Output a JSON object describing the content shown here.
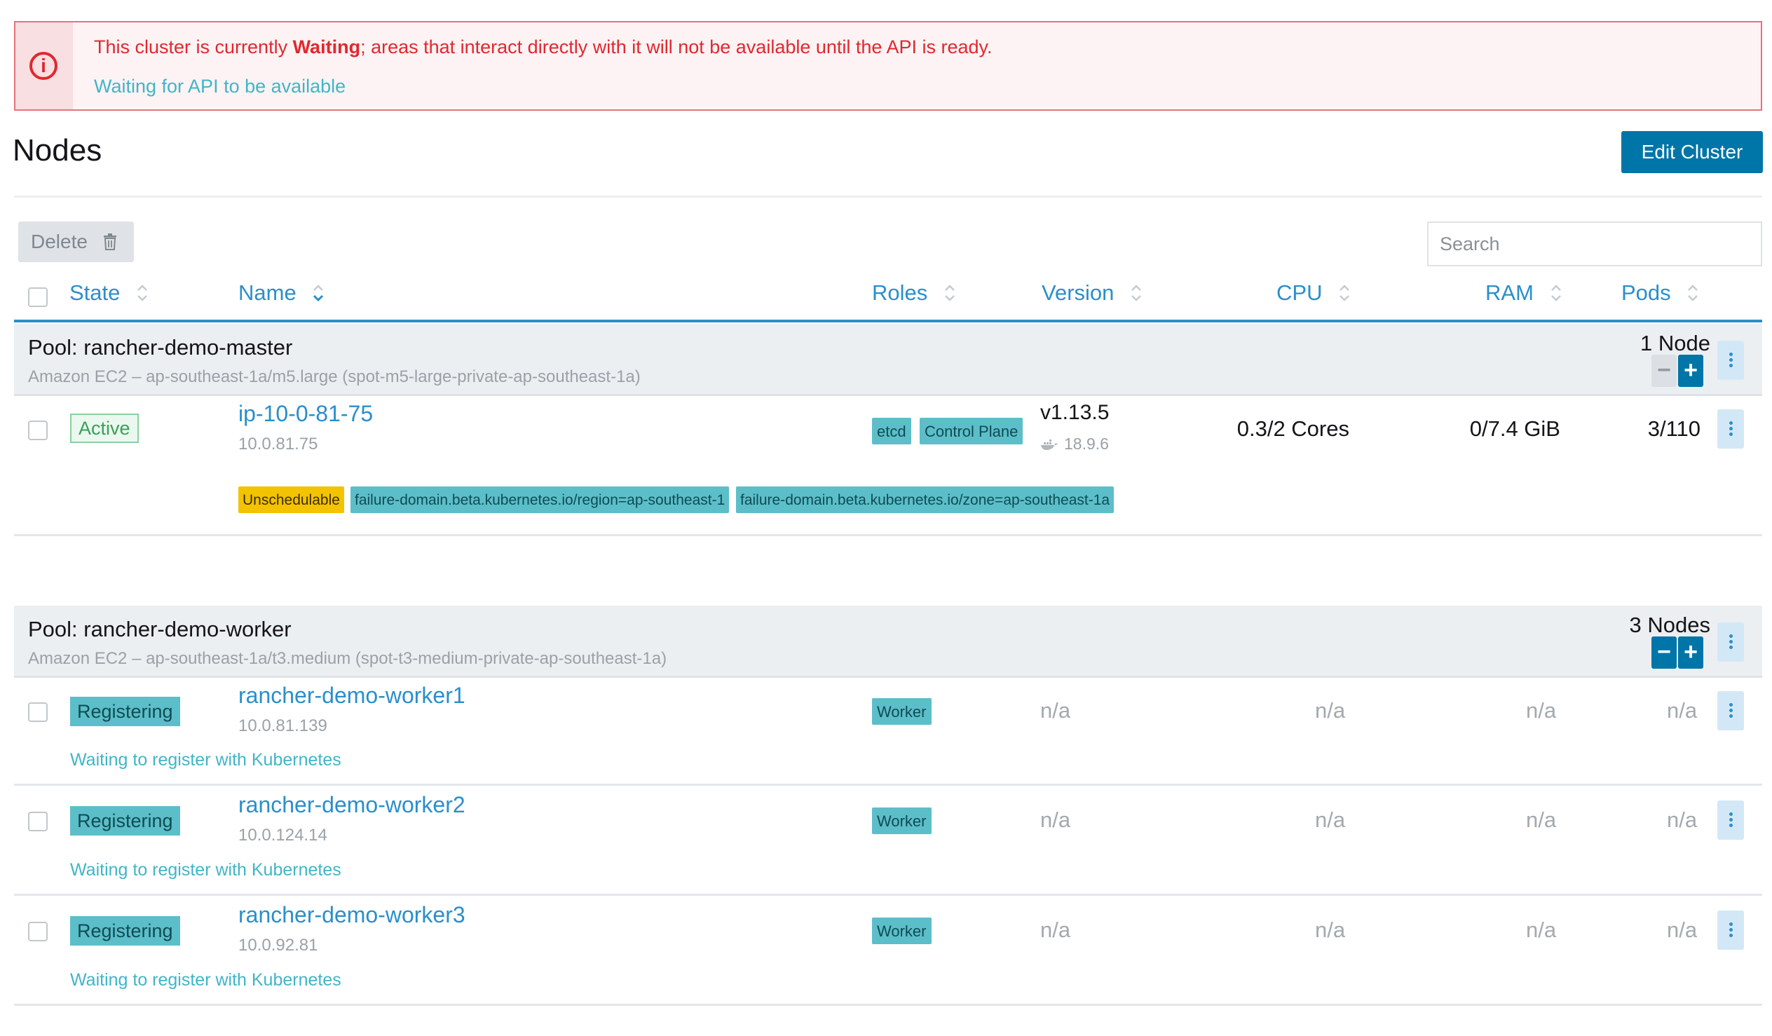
{
  "banner": {
    "message_pre": "This cluster is currently ",
    "message_state": "Waiting",
    "message_post": "; areas that interact directly with it will not be available until the API is ready.",
    "sub": "Waiting for API to be available",
    "icon": "alert-circle-icon"
  },
  "header": {
    "title": "Nodes",
    "edit_button": "Edit Cluster"
  },
  "toolbar": {
    "delete_label": "Delete",
    "search_placeholder": "Search"
  },
  "columns": {
    "state": "State",
    "name": "Name",
    "roles": "Roles",
    "version": "Version",
    "cpu": "CPU",
    "ram": "RAM",
    "pods": "Pods"
  },
  "pools": [
    {
      "name": "Pool: rancher-demo-master",
      "description": "Amazon EC2 – ap-southeast-1a/m5.large (spot-m5-large-private-ap-southeast-1a)",
      "count": "1 Node",
      "nodes": [
        {
          "state": "Active",
          "name": "ip-10-0-81-75",
          "ip": "10.0.81.75",
          "roles": [
            "etcd",
            "Control Plane"
          ],
          "version": "v1.13.5",
          "docker": "18.9.6",
          "cpu": "0.3/2 Cores",
          "ram": "0/7.4 GiB",
          "pods": "3/110",
          "labels": [
            "Unschedulable",
            "failure-domain.beta.kubernetes.io/region=ap-southeast-1",
            "failure-domain.beta.kubernetes.io/zone=ap-southeast-1a"
          ]
        }
      ]
    },
    {
      "name": "Pool: rancher-demo-worker",
      "description": "Amazon EC2 – ap-southeast-1a/t3.medium (spot-t3-medium-private-ap-southeast-1a)",
      "count": "3 Nodes",
      "nodes": [
        {
          "state": "Registering",
          "name": "rancher-demo-worker1",
          "ip": "10.0.81.139",
          "role": "Worker",
          "version": "n/a",
          "cpu": "n/a",
          "ram": "n/a",
          "pods": "n/a",
          "message": "Waiting to register with Kubernetes"
        },
        {
          "state": "Registering",
          "name": "rancher-demo-worker2",
          "ip": "10.0.124.14",
          "role": "Worker",
          "version": "n/a",
          "cpu": "n/a",
          "ram": "n/a",
          "pods": "n/a",
          "message": "Waiting to register with Kubernetes"
        },
        {
          "state": "Registering",
          "name": "rancher-demo-worker3",
          "ip": "10.0.92.81",
          "role": "Worker",
          "version": "n/a",
          "cpu": "n/a",
          "ram": "n/a",
          "pods": "n/a",
          "message": "Waiting to register with Kubernetes"
        }
      ]
    }
  ],
  "colors": {
    "accent": "#2a8fcb",
    "primary_button": "#0075a8",
    "error": "#e0282e",
    "info": "#41b5c7",
    "registering": "#5cbec9",
    "warning_chip": "#f3c300"
  }
}
